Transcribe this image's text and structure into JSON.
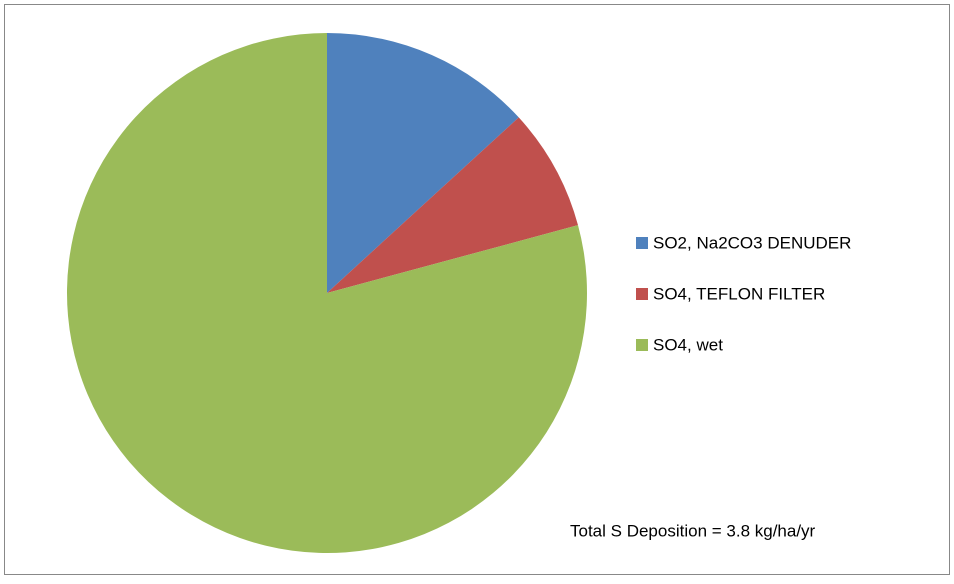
{
  "chart_data": {
    "type": "pie",
    "categories": [
      "SO2, Na2CO3 DENUDER",
      "SO4, TEFLON FILTER",
      "SO4, wet"
    ],
    "values": [
      13.2,
      7.6,
      79.2
    ],
    "colors": [
      "#4f81bd",
      "#c0504d",
      "#9bbb59"
    ],
    "legend": "right",
    "annotation": "Total S Deposition = 3.8 kg/ha/yr"
  }
}
